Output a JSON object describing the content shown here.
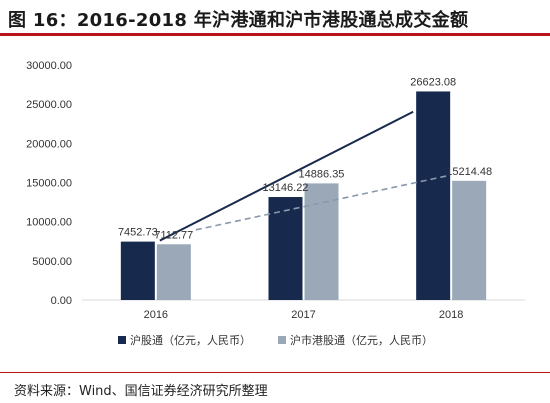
{
  "title": "图 16：2016-2018 年沪港通和沪市港股通总成交金额",
  "source": "资料来源：Wind、国信证券经济研究所整理",
  "chart_data": {
    "type": "bar",
    "categories": [
      "2016",
      "2017",
      "2018"
    ],
    "series": [
      {
        "name": "沪股通（亿元，人民币）",
        "values": [
          7452.73,
          13146.22,
          26623.08
        ],
        "labels": [
          "7452.73",
          "13146.22",
          "26623.08"
        ],
        "color": "#17294d"
      },
      {
        "name": "沪市港股通（亿元，人民币）",
        "values": [
          7112.77,
          14886.35,
          15214.48
        ],
        "labels": [
          "7112.77",
          "14886.35",
          "15214.48"
        ],
        "color": "#9aa8b8"
      }
    ],
    "trendlines": [
      {
        "series": 0,
        "style": "solid",
        "color": "#17294d"
      },
      {
        "series": 1,
        "style": "dashed",
        "color": "#8a98ad"
      }
    ],
    "yticks": [
      "0.00",
      "5000.00",
      "10000.00",
      "15000.00",
      "20000.00",
      "25000.00",
      "30000.00"
    ],
    "ylim": [
      0,
      30000
    ],
    "grid": false,
    "legend": "bottom"
  }
}
